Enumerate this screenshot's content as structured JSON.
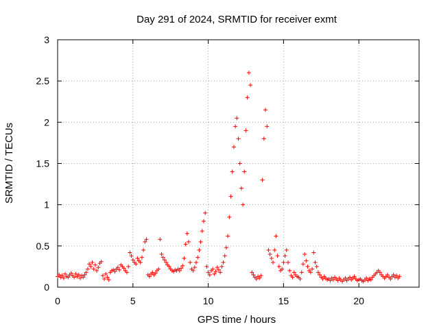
{
  "chart_data": {
    "type": "scatter",
    "title": "Day 291 of 2024, SRMTID for receiver exmt",
    "xlabel": "GPS time / hours",
    "ylabel": "SRMTID / TECUs",
    "xlim": [
      0,
      24
    ],
    "ylim": [
      0,
      3
    ],
    "x_ticks": [
      0,
      5,
      10,
      15,
      20
    ],
    "x_tick_labels": [
      "0",
      "5",
      "10",
      "15",
      "20"
    ],
    "y_ticks": [
      0,
      0.5,
      1,
      1.5,
      2,
      2.5,
      3
    ],
    "y_tick_labels": [
      "0",
      "0.5",
      "1",
      "1.5",
      "2",
      "2.5",
      "3"
    ],
    "grid": true,
    "marker": "+",
    "series": [
      {
        "name": "SRMTID",
        "color": "#ff0000",
        "points": [
          [
            0.0,
            0.13
          ],
          [
            0.1,
            0.15
          ],
          [
            0.2,
            0.12
          ],
          [
            0.3,
            0.14
          ],
          [
            0.4,
            0.11
          ],
          [
            0.5,
            0.16
          ],
          [
            0.6,
            0.13
          ],
          [
            0.7,
            0.12
          ],
          [
            0.8,
            0.15
          ],
          [
            0.9,
            0.17
          ],
          [
            1.0,
            0.14
          ],
          [
            1.1,
            0.12
          ],
          [
            1.2,
            0.16
          ],
          [
            1.3,
            0.13
          ],
          [
            1.4,
            0.15
          ],
          [
            1.5,
            0.11
          ],
          [
            1.6,
            0.14
          ],
          [
            1.7,
            0.12
          ],
          [
            1.8,
            0.15
          ],
          [
            1.9,
            0.18
          ],
          [
            2.0,
            0.22
          ],
          [
            2.1,
            0.28
          ],
          [
            2.2,
            0.25
          ],
          [
            2.3,
            0.3
          ],
          [
            2.4,
            0.22
          ],
          [
            2.5,
            0.27
          ],
          [
            2.6,
            0.2
          ],
          [
            2.7,
            0.24
          ],
          [
            2.8,
            0.29
          ],
          [
            2.9,
            0.31
          ],
          [
            3.0,
            0.14
          ],
          [
            3.1,
            0.1
          ],
          [
            3.2,
            0.16
          ],
          [
            3.3,
            0.12
          ],
          [
            3.4,
            0.09
          ],
          [
            3.5,
            0.18
          ],
          [
            3.6,
            0.2
          ],
          [
            3.7,
            0.21
          ],
          [
            3.8,
            0.19
          ],
          [
            3.9,
            0.22
          ],
          [
            4.0,
            0.24
          ],
          [
            4.1,
            0.21
          ],
          [
            4.2,
            0.27
          ],
          [
            4.3,
            0.25
          ],
          [
            4.4,
            0.23
          ],
          [
            4.5,
            0.2
          ],
          [
            4.6,
            0.18
          ],
          [
            4.7,
            0.25
          ],
          [
            4.8,
            0.42
          ],
          [
            4.9,
            0.38
          ],
          [
            5.0,
            0.33
          ],
          [
            5.1,
            0.3
          ],
          [
            5.2,
            0.28
          ],
          [
            5.3,
            0.35
          ],
          [
            5.4,
            0.32
          ],
          [
            5.5,
            0.3
          ],
          [
            5.6,
            0.36
          ],
          [
            5.7,
            0.45
          ],
          [
            5.8,
            0.55
          ],
          [
            5.9,
            0.58
          ],
          [
            6.0,
            0.15
          ],
          [
            6.1,
            0.13
          ],
          [
            6.2,
            0.16
          ],
          [
            6.3,
            0.18
          ],
          [
            6.4,
            0.15
          ],
          [
            6.5,
            0.17
          ],
          [
            6.6,
            0.2
          ],
          [
            6.7,
            0.22
          ],
          [
            6.8,
            0.58
          ],
          [
            6.9,
            0.4
          ],
          [
            7.0,
            0.36
          ],
          [
            7.1,
            0.33
          ],
          [
            7.2,
            0.3
          ],
          [
            7.3,
            0.27
          ],
          [
            7.4,
            0.25
          ],
          [
            7.5,
            0.22
          ],
          [
            7.6,
            0.2
          ],
          [
            7.7,
            0.19
          ],
          [
            7.8,
            0.21
          ],
          [
            7.9,
            0.2
          ],
          [
            8.0,
            0.22
          ],
          [
            8.1,
            0.2
          ],
          [
            8.2,
            0.23
          ],
          [
            8.3,
            0.26
          ],
          [
            8.4,
            0.35
          ],
          [
            8.5,
            0.52
          ],
          [
            8.6,
            0.65
          ],
          [
            8.7,
            0.55
          ],
          [
            8.8,
            0.3
          ],
          [
            8.9,
            0.22
          ],
          [
            9.0,
            0.2
          ],
          [
            9.1,
            0.24
          ],
          [
            9.2,
            0.3
          ],
          [
            9.3,
            0.36
          ],
          [
            9.4,
            0.45
          ],
          [
            9.5,
            0.55
          ],
          [
            9.6,
            0.68
          ],
          [
            9.7,
            0.8
          ],
          [
            9.8,
            0.9
          ],
          [
            9.9,
            0.25
          ],
          [
            10.0,
            0.18
          ],
          [
            10.1,
            0.15
          ],
          [
            10.2,
            0.2
          ],
          [
            10.3,
            0.22
          ],
          [
            10.4,
            0.16
          ],
          [
            10.5,
            0.19
          ],
          [
            10.6,
            0.24
          ],
          [
            10.7,
            0.21
          ],
          [
            10.8,
            0.18
          ],
          [
            10.9,
            0.25
          ],
          [
            11.0,
            0.3
          ],
          [
            11.1,
            0.38
          ],
          [
            11.2,
            0.48
          ],
          [
            11.3,
            0.62
          ],
          [
            11.4,
            0.85
          ],
          [
            11.5,
            1.1
          ],
          [
            11.6,
            1.4
          ],
          [
            11.7,
            1.7
          ],
          [
            11.8,
            1.95
          ],
          [
            11.9,
            2.05
          ],
          [
            12.0,
            1.8
          ],
          [
            12.1,
            1.5
          ],
          [
            12.2,
            1.2
          ],
          [
            12.3,
            1.0
          ],
          [
            12.4,
            1.4
          ],
          [
            12.5,
            1.9
          ],
          [
            12.6,
            2.3
          ],
          [
            12.7,
            2.6
          ],
          [
            12.8,
            2.45
          ],
          [
            12.9,
            0.18
          ],
          [
            13.0,
            0.15
          ],
          [
            13.1,
            0.12
          ],
          [
            13.2,
            0.1
          ],
          [
            13.3,
            0.13
          ],
          [
            13.4,
            0.11
          ],
          [
            13.5,
            0.14
          ],
          [
            13.6,
            1.3
          ],
          [
            13.7,
            1.8
          ],
          [
            13.8,
            2.15
          ],
          [
            13.9,
            1.95
          ],
          [
            14.0,
            0.45
          ],
          [
            14.1,
            0.4
          ],
          [
            14.2,
            0.35
          ],
          [
            14.3,
            0.3
          ],
          [
            14.4,
            0.45
          ],
          [
            14.5,
            0.62
          ],
          [
            14.6,
            0.38
          ],
          [
            14.7,
            0.25
          ],
          [
            14.8,
            0.2
          ],
          [
            14.9,
            0.22
          ],
          [
            15.0,
            0.3
          ],
          [
            15.1,
            0.38
          ],
          [
            15.2,
            0.45
          ],
          [
            15.3,
            0.3
          ],
          [
            15.4,
            0.2
          ],
          [
            15.5,
            0.14
          ],
          [
            15.6,
            0.12
          ],
          [
            15.7,
            0.18
          ],
          [
            15.8,
            0.15
          ],
          [
            15.9,
            0.13
          ],
          [
            16.0,
            0.12
          ],
          [
            16.1,
            0.1
          ],
          [
            16.2,
            0.18
          ],
          [
            16.3,
            0.28
          ],
          [
            16.4,
            0.4
          ],
          [
            16.5,
            0.32
          ],
          [
            16.6,
            0.25
          ],
          [
            16.7,
            0.2
          ],
          [
            16.8,
            0.18
          ],
          [
            16.9,
            0.22
          ],
          [
            17.0,
            0.42
          ],
          [
            17.1,
            0.3
          ],
          [
            17.2,
            0.25
          ],
          [
            17.3,
            0.18
          ],
          [
            17.4,
            0.15
          ],
          [
            17.5,
            0.12
          ],
          [
            17.6,
            0.1
          ],
          [
            17.7,
            0.13
          ],
          [
            17.8,
            0.11
          ],
          [
            17.9,
            0.09
          ],
          [
            18.0,
            0.1
          ],
          [
            18.1,
            0.08
          ],
          [
            18.2,
            0.11
          ],
          [
            18.3,
            0.09
          ],
          [
            18.4,
            0.12
          ],
          [
            18.5,
            0.1
          ],
          [
            18.6,
            0.08
          ],
          [
            18.7,
            0.11
          ],
          [
            18.8,
            0.09
          ],
          [
            18.9,
            0.07
          ],
          [
            19.0,
            0.09
          ],
          [
            19.1,
            0.11
          ],
          [
            19.2,
            0.08
          ],
          [
            19.3,
            0.1
          ],
          [
            19.4,
            0.12
          ],
          [
            19.5,
            0.09
          ],
          [
            19.6,
            0.11
          ],
          [
            19.7,
            0.13
          ],
          [
            19.8,
            0.1
          ],
          [
            19.9,
            0.08
          ],
          [
            20.0,
            0.09
          ],
          [
            20.1,
            0.1
          ],
          [
            20.2,
            0.08
          ],
          [
            20.3,
            0.07
          ],
          [
            20.4,
            0.09
          ],
          [
            20.5,
            0.11
          ],
          [
            20.6,
            0.08
          ],
          [
            20.7,
            0.1
          ],
          [
            20.8,
            0.09
          ],
          [
            20.9,
            0.12
          ],
          [
            21.0,
            0.14
          ],
          [
            21.1,
            0.16
          ],
          [
            21.2,
            0.18
          ],
          [
            21.3,
            0.2
          ],
          [
            21.4,
            0.18
          ],
          [
            21.5,
            0.15
          ],
          [
            21.6,
            0.13
          ],
          [
            21.7,
            0.11
          ],
          [
            21.8,
            0.13
          ],
          [
            21.9,
            0.15
          ],
          [
            22.0,
            0.12
          ],
          [
            22.1,
            0.1
          ],
          [
            22.2,
            0.13
          ],
          [
            22.3,
            0.15
          ],
          [
            22.4,
            0.12
          ],
          [
            22.5,
            0.14
          ],
          [
            22.6,
            0.11
          ],
          [
            22.7,
            0.13
          ]
        ]
      }
    ]
  }
}
